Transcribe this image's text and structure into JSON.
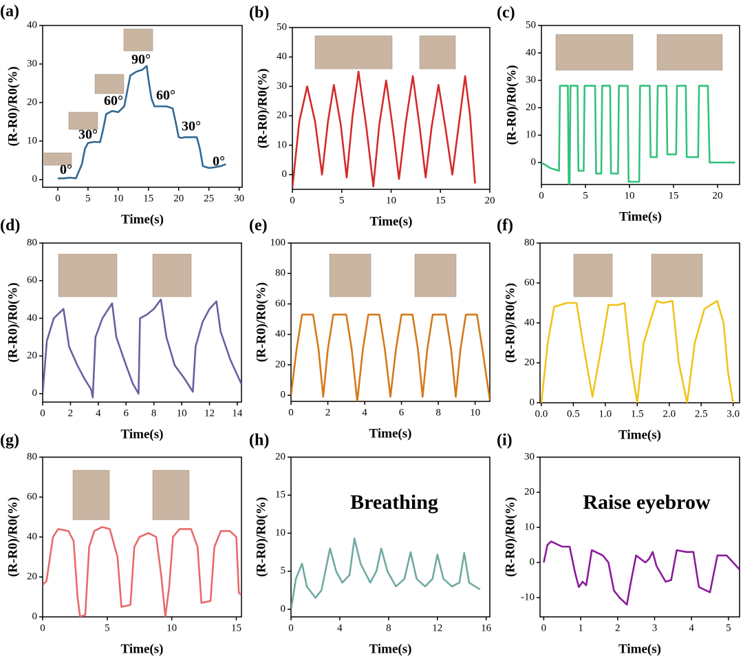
{
  "chart_data": [
    {
      "type": "line",
      "label": "(a)",
      "ylabel": "(R-R0)/R0(%)",
      "xlabel": "Time(s)",
      "color": "#2f6894",
      "xlim": [
        -2.5,
        30.5
      ],
      "ylim": [
        -2,
        40
      ],
      "xticks": [
        0,
        5,
        10,
        15,
        20,
        25,
        30
      ],
      "yticks": [
        0,
        10,
        20,
        30,
        40
      ],
      "annotations": [
        "0°",
        "30°",
        "60°",
        "90°",
        "60°",
        "30°",
        "0°"
      ],
      "x": [
        0,
        1,
        2,
        3,
        4,
        4.5,
        5,
        6,
        7,
        7.5,
        8,
        9,
        10,
        11,
        11.5,
        12,
        13,
        14,
        14.7,
        15,
        15.5,
        16,
        17,
        18,
        19,
        19.5,
        20,
        20.5,
        21,
        22,
        23,
        23.5,
        24,
        25,
        26,
        27,
        27.8
      ],
      "values": [
        0.3,
        0.3,
        0.5,
        0.3,
        4,
        8,
        9.5,
        9.8,
        9.7,
        13,
        17,
        17.8,
        17.5,
        19,
        23,
        27,
        28,
        28.5,
        29.5,
        26,
        21,
        19,
        19,
        19,
        18.5,
        15,
        11,
        10.8,
        11,
        11,
        11,
        8,
        3.5,
        3,
        3.2,
        3.5,
        4
      ]
    },
    {
      "type": "line",
      "label": "(b)",
      "ylabel": "(R-R0)/R0(%)",
      "xlabel": "Time(s)",
      "color": "#d42a2a",
      "xlim": [
        0,
        20
      ],
      "ylim": [
        -5,
        50
      ],
      "xticks": [
        0,
        5,
        10,
        15,
        20
      ],
      "yticks": [
        0,
        10,
        20,
        30,
        40,
        50
      ],
      "x": [
        0,
        0.7,
        1.5,
        2.3,
        3,
        3.6,
        4.2,
        4.9,
        5.5,
        6.1,
        6.7,
        7.5,
        8.2,
        8.8,
        9.5,
        10.2,
        10.8,
        11.5,
        12.2,
        12.9,
        13.5,
        14.1,
        14.8,
        15.5,
        16.2,
        16.9,
        17.5,
        18,
        18.5
      ],
      "values": [
        -4.5,
        18,
        30,
        18,
        0,
        18,
        30.5,
        17,
        -1,
        20,
        35,
        16,
        -4,
        17,
        32,
        15,
        -1.5,
        18,
        33.5,
        16,
        -1,
        16,
        30.5,
        16,
        0,
        18,
        33.5,
        20,
        -3
      ]
    },
    {
      "type": "line",
      "label": "(c)",
      "ylabel": "(R-R0)/R0(%)",
      "xlabel": "Time(s)",
      "color": "#33c17a",
      "xlim": [
        0,
        22.5
      ],
      "ylim": [
        -8,
        50
      ],
      "xticks": [
        0,
        5,
        10,
        15,
        20
      ],
      "yticks": [
        0,
        10,
        20,
        30,
        40,
        50
      ],
      "x": [
        0,
        1,
        2,
        2.1,
        3,
        3.1,
        3.2,
        3.3,
        4.1,
        4.2,
        4.8,
        4.9,
        6.1,
        6.2,
        6.8,
        6.9,
        7.8,
        7.9,
        8.7,
        8.8,
        9.8,
        9.9,
        11.1,
        11.2,
        12.3,
        12.4,
        13.1,
        13.2,
        14.2,
        14.3,
        15.3,
        15.4,
        16.4,
        16.5,
        17.8,
        17.9,
        18.9,
        19.1,
        20,
        22
      ],
      "values": [
        0,
        -2,
        -3,
        28,
        28,
        -8,
        -8,
        28,
        28,
        -3,
        -3,
        28,
        28,
        -4,
        -4,
        28,
        28,
        -4,
        -4,
        28,
        28,
        -7,
        -7,
        28,
        28,
        2,
        2,
        28,
        28,
        3,
        3,
        28,
        28,
        2,
        2,
        28,
        28,
        0,
        0,
        0
      ]
    },
    {
      "type": "line",
      "label": "(d)",
      "ylabel": "(R-R0)/R0(%)",
      "xlabel": "Time(s)",
      "color": "#6a5fa0",
      "xlim": [
        0,
        14.3
      ],
      "ylim": [
        -4.5,
        80
      ],
      "xticks": [
        0,
        2,
        4,
        6,
        8,
        10,
        12,
        14
      ],
      "yticks": [
        0,
        20,
        40,
        60,
        80
      ],
      "x": [
        0,
        0.3,
        0.8,
        1.5,
        1.9,
        2.5,
        3,
        3.5,
        3.6,
        3.8,
        4.3,
        5,
        5.3,
        6,
        6.5,
        6.9,
        7,
        7.5,
        8,
        8.5,
        8.9,
        9.5,
        10.2,
        10.8,
        11,
        11.5,
        12,
        12.5,
        12.8,
        13.5,
        14.3
      ],
      "values": [
        0,
        28,
        40,
        45,
        25,
        15,
        8,
        2,
        -2,
        30,
        40,
        48,
        30,
        15,
        5,
        0,
        40,
        42,
        45,
        50,
        30,
        15,
        8,
        1,
        25,
        38,
        45,
        49,
        33,
        18,
        5
      ]
    },
    {
      "type": "line",
      "label": "(e)",
      "ylabel": "(R-R0)/R0(%)",
      "xlabel": "Time(s)",
      "color": "#d4791a",
      "xlim": [
        0,
        10.8
      ],
      "ylim": [
        -4,
        100
      ],
      "xticks": [
        0,
        2,
        4,
        6,
        8,
        10
      ],
      "yticks": [
        0,
        20,
        40,
        60,
        80,
        100
      ],
      "x": [
        0,
        0.3,
        0.6,
        1.2,
        1.5,
        1.75,
        2,
        2.3,
        3,
        3.3,
        3.6,
        3.9,
        4.2,
        4.8,
        5.1,
        5.4,
        5.7,
        6,
        6.6,
        6.9,
        7.15,
        7.4,
        7.7,
        8.4,
        8.7,
        8.95,
        9.2,
        9.5,
        10.1,
        10.4,
        10.8
      ],
      "values": [
        0,
        30,
        53,
        53,
        30,
        -1,
        30,
        53,
        53,
        30,
        -4,
        30,
        53,
        53,
        30,
        -1,
        30,
        53,
        53,
        30,
        -1,
        30,
        53,
        53,
        30,
        -1,
        30,
        53,
        53,
        30,
        -3
      ]
    },
    {
      "type": "line",
      "label": "(f)",
      "ylabel": "(R-R0)/R0(%)",
      "xlabel": "Time(s)",
      "color": "#f0c419",
      "xlim": [
        -0.02,
        3.1
      ],
      "ylim": [
        0,
        80
      ],
      "xticks": [
        {
          "value": 0,
          "label": "0.0"
        },
        0.5,
        {
          "value": 1,
          "label": "1.0"
        },
        1.5,
        {
          "value": 2,
          "label": "2.0"
        },
        2.5,
        {
          "value": 3,
          "label": "3.0"
        }
      ],
      "yticks": [
        0,
        20,
        40,
        60,
        80
      ],
      "x": [
        0,
        0.1,
        0.2,
        0.4,
        0.55,
        0.65,
        0.8,
        0.95,
        1.05,
        1.2,
        1.3,
        1.4,
        1.5,
        1.6,
        1.8,
        1.9,
        2.05,
        2.15,
        2.28,
        2.4,
        2.55,
        2.75,
        2.85,
        2.92,
        3.0
      ],
      "values": [
        0,
        30,
        48,
        50,
        50,
        30,
        3,
        30,
        49,
        49,
        50,
        20,
        0,
        30,
        51,
        50,
        51,
        20,
        0,
        30,
        47,
        51,
        40,
        15,
        0
      ]
    },
    {
      "type": "line",
      "label": "(g)",
      "ylabel": "(R-R0)/R0(%)",
      "xlabel": "Time(s)",
      "color": "#e66a6a",
      "xlim": [
        0,
        15.4
      ],
      "ylim": [
        0,
        80
      ],
      "xticks": [
        0,
        5,
        10,
        15
      ],
      "yticks": [
        0,
        20,
        40,
        60,
        80
      ],
      "x": [
        0,
        0.3,
        0.8,
        1.2,
        2,
        2.4,
        2.7,
        2.9,
        3.3,
        3.6,
        4,
        4.6,
        5.2,
        5.8,
        6.1,
        6.8,
        7.1,
        7.5,
        8.2,
        8.8,
        9.2,
        9.5,
        9.8,
        10.1,
        10.6,
        11.5,
        12,
        12.3,
        13,
        13.3,
        13.8,
        14.5,
        15,
        15.2,
        15.4
      ],
      "values": [
        16,
        18,
        40,
        44,
        43,
        38,
        10,
        0,
        1,
        35,
        43,
        45,
        44,
        30,
        5,
        6,
        35,
        40,
        42,
        40,
        20,
        0,
        15,
        40,
        44,
        44,
        35,
        7,
        8,
        35,
        43,
        43,
        40,
        12,
        11
      ]
    },
    {
      "type": "line",
      "label": "(h)",
      "ylabel": "(R-R0)/R0(%)",
      "xlabel": "Time(s)",
      "color": "#6fa9a3",
      "xlim": [
        0,
        16.3
      ],
      "ylim": [
        -1,
        20
      ],
      "xticks": [
        0,
        4,
        8,
        12,
        16
      ],
      "yticks": [
        0,
        5,
        10,
        15,
        20
      ],
      "annotations": [
        "Breathing"
      ],
      "x": [
        0,
        0.4,
        0.9,
        1.3,
        2,
        2.5,
        3.2,
        3.7,
        4.2,
        4.8,
        5.2,
        5.7,
        6.5,
        7,
        7.4,
        7.9,
        8.6,
        9.3,
        9.8,
        10.3,
        11,
        11.6,
        12,
        12.5,
        13.2,
        13.8,
        14.2,
        14.6,
        15.5
      ],
      "values": [
        0,
        4,
        6,
        3,
        1.5,
        2.5,
        8,
        5,
        3.5,
        4.5,
        9.3,
        6,
        3.5,
        5,
        8,
        5,
        3,
        4,
        7.5,
        4,
        3,
        4,
        7.2,
        4,
        3,
        3.5,
        7.4,
        3.5,
        2.6
      ]
    },
    {
      "type": "line",
      "label": "(i)",
      "ylabel": "(R-R0)/R0(%)",
      "xlabel": "Time(s)",
      "color": "#8a1a9a",
      "xlim": [
        -0.1,
        5.3
      ],
      "ylim": [
        -15.5,
        30
      ],
      "xticks": [
        0,
        1,
        2,
        3,
        4,
        5
      ],
      "yticks": [
        -10,
        0,
        10,
        20,
        30
      ],
      "annotations": [
        "Raise eyebrow"
      ],
      "x": [
        0,
        0.1,
        0.2,
        0.5,
        0.7,
        0.85,
        0.95,
        1.05,
        1.15,
        1.3,
        1.6,
        1.75,
        1.9,
        2.05,
        2.25,
        2.35,
        2.5,
        2.75,
        2.85,
        2.95,
        3.05,
        3.3,
        3.45,
        3.6,
        3.85,
        4.05,
        4.2,
        4.5,
        4.7,
        4.95,
        5.3
      ],
      "values": [
        0,
        5,
        6,
        4.5,
        4.5,
        -3,
        -7,
        -5.5,
        -6.5,
        3.5,
        2,
        0,
        -8,
        -10,
        -12,
        -6,
        2,
        0,
        1,
        3,
        -1,
        -5.5,
        -5,
        3.5,
        3,
        3,
        -7,
        -8.5,
        2,
        2,
        -2
      ]
    }
  ]
}
